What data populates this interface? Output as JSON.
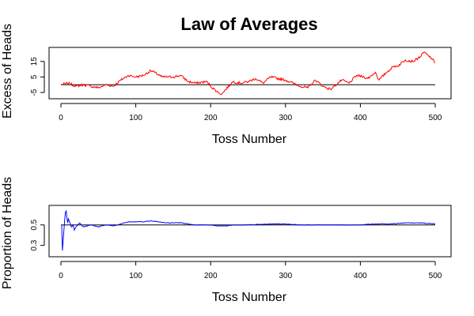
{
  "title": "Law of Averages",
  "chart_data": [
    {
      "type": "line",
      "xlabel": "Toss Number",
      "ylabel": "Excess of Heads",
      "xlim": [
        0,
        500
      ],
      "ylim": [
        -7,
        22
      ],
      "x_ticks": [
        0,
        100,
        200,
        300,
        400,
        500
      ],
      "y_ticks": [
        -5,
        5,
        15
      ],
      "grid": false,
      "reference_line": 0,
      "series": [
        {
          "color": "#ff0000",
          "keypoints": [
            [
              0,
              0
            ],
            [
              10,
              1
            ],
            [
              20,
              -1
            ],
            [
              30,
              0
            ],
            [
              40,
              -1
            ],
            [
              50,
              -2
            ],
            [
              60,
              0
            ],
            [
              70,
              -1
            ],
            [
              80,
              3
            ],
            [
              90,
              6
            ],
            [
              100,
              5
            ],
            [
              110,
              6
            ],
            [
              120,
              9
            ],
            [
              125,
              8
            ],
            [
              135,
              5
            ],
            [
              150,
              5
            ],
            [
              160,
              6
            ],
            [
              170,
              2
            ],
            [
              180,
              1
            ],
            [
              195,
              2
            ],
            [
              200,
              -1
            ],
            [
              210,
              -5
            ],
            [
              215,
              -6
            ],
            [
              220,
              -3
            ],
            [
              230,
              2
            ],
            [
              240,
              1
            ],
            [
              250,
              2
            ],
            [
              260,
              4
            ],
            [
              270,
              1
            ],
            [
              280,
              5
            ],
            [
              300,
              3
            ],
            [
              310,
              1
            ],
            [
              320,
              -1
            ],
            [
              330,
              -2
            ],
            [
              340,
              3
            ],
            [
              350,
              -1
            ],
            [
              360,
              -3
            ],
            [
              365,
              -1
            ],
            [
              375,
              3
            ],
            [
              385,
              1
            ],
            [
              395,
              6
            ],
            [
              405,
              5
            ],
            [
              410,
              4
            ],
            [
              420,
              8
            ],
            [
              425,
              3
            ],
            [
              435,
              8
            ],
            [
              445,
              12
            ],
            [
              450,
              12
            ],
            [
              460,
              16
            ],
            [
              470,
              15
            ],
            [
              480,
              18
            ],
            [
              485,
              21
            ],
            [
              490,
              19
            ],
            [
              495,
              17
            ],
            [
              500,
              14
            ]
          ]
        }
      ]
    },
    {
      "type": "line",
      "xlabel": "Toss Number",
      "ylabel": "Proportion of Heads",
      "xlim": [
        0,
        500
      ],
      "ylim": [
        0.22,
        0.66
      ],
      "x_ticks": [
        0,
        100,
        200,
        300,
        400,
        500
      ],
      "y_ticks": [
        0.3,
        0.5
      ],
      "grid": false,
      "reference_line": 0.5,
      "series": [
        {
          "color": "#0000ff",
          "keypoints": [
            [
              1,
              0.5
            ],
            [
              2,
              0.25
            ],
            [
              3,
              0.35
            ],
            [
              4,
              0.45
            ],
            [
              5,
              0.55
            ],
            [
              6,
              0.62
            ],
            [
              7,
              0.64
            ],
            [
              8,
              0.57
            ],
            [
              9,
              0.52
            ],
            [
              10,
              0.56
            ],
            [
              12,
              0.52
            ],
            [
              14,
              0.48
            ],
            [
              16,
              0.5
            ],
            [
              18,
              0.45
            ],
            [
              20,
              0.48
            ],
            [
              25,
              0.52
            ],
            [
              30,
              0.48
            ],
            [
              40,
              0.5
            ],
            [
              50,
              0.48
            ],
            [
              60,
              0.5
            ],
            [
              70,
              0.49
            ],
            [
              80,
              0.51
            ],
            [
              90,
              0.53
            ],
            [
              100,
              0.53
            ],
            [
              110,
              0.53
            ],
            [
              120,
              0.54
            ],
            [
              130,
              0.53
            ],
            [
              140,
              0.52
            ],
            [
              150,
              0.52
            ],
            [
              160,
              0.52
            ],
            [
              170,
              0.51
            ],
            [
              180,
              0.5
            ],
            [
              200,
              0.5
            ],
            [
              210,
              0.49
            ],
            [
              220,
              0.49
            ],
            [
              230,
              0.5
            ],
            [
              250,
              0.5
            ],
            [
              280,
              0.51
            ],
            [
              300,
              0.51
            ],
            [
              320,
              0.5
            ],
            [
              340,
              0.5
            ],
            [
              360,
              0.5
            ],
            [
              380,
              0.5
            ],
            [
              400,
              0.5
            ],
            [
              420,
              0.51
            ],
            [
              440,
              0.51
            ],
            [
              460,
              0.52
            ],
            [
              480,
              0.52
            ],
            [
              500,
              0.51
            ]
          ]
        }
      ]
    }
  ]
}
